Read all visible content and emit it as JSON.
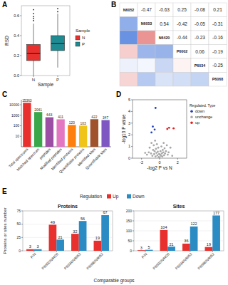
{
  "chart_data": [
    {
      "panel_label": "A",
      "type": "box",
      "x_label": "Sample",
      "y_label": "RSD",
      "categories": [
        "N",
        "P"
      ],
      "colors": [
        "#e8312e",
        "#1e8b93"
      ],
      "legend_title": "Sample",
      "legend": "right",
      "ylim": [
        0,
        0.7
      ],
      "yticks": [
        {
          "value": 0,
          "label": "0.0"
        },
        {
          "value": 0.2,
          "label": "0.2"
        },
        {
          "value": 0.4,
          "label": "0.4"
        },
        {
          "value": 0.6,
          "label": "0.6"
        }
      ],
      "boxes": [
        {
          "min": 0.0,
          "q1": 0.15,
          "median": 0.22,
          "q3": 0.31,
          "max": 0.52,
          "outliers": [
            0.55,
            0.57,
            0.59,
            0.62,
            0.66
          ]
        },
        {
          "min": 0.08,
          "q1": 0.25,
          "median": 0.32,
          "q3": 0.4,
          "max": 0.62,
          "outliers": [
            0.64,
            0.67
          ]
        }
      ]
    },
    {
      "panel_label": "B",
      "type": "heatmap",
      "labels": [
        "N6052",
        "N6053",
        "N6420",
        "P6002",
        "P6034",
        "P6068"
      ],
      "matrix": [
        [
          null,
          -0.47,
          -0.63,
          0.25,
          -0.08,
          0.21
        ],
        [
          -0.47,
          null,
          0.54,
          -0.42,
          -0.05,
          -0.31
        ],
        [
          -0.63,
          0.54,
          null,
          -0.44,
          -0.23,
          -0.16
        ],
        [
          0.25,
          -0.42,
          -0.44,
          null,
          0.06,
          -0.19
        ],
        [
          -0.08,
          -0.05,
          -0.23,
          0.06,
          null,
          -0.25
        ],
        [
          0.21,
          -0.31,
          -0.16,
          -0.19,
          -0.25,
          null
        ]
      ]
    },
    {
      "panel_label": "C",
      "type": "bar",
      "log": "y",
      "categories": [
        "Total spectrums",
        "Matched spectrum",
        "peptides",
        "Modified peptides",
        "Identified proteins",
        "Quantifiable proteins",
        "Identified sites",
        "Quantifiable sites"
      ],
      "values": [
        15363,
        2041,
        643,
        411,
        120,
        103,
        422,
        347
      ],
      "colors": [
        "#e8312e",
        "#3aa84a",
        "#9b4ea3",
        "#e377c2",
        "#ff7f0e",
        "#f0c419",
        "#a0522d",
        "#7e57c2"
      ],
      "ylim": [
        1,
        30000
      ],
      "yticks": [
        10,
        100,
        1000,
        10000
      ],
      "data_labels": true
    },
    {
      "panel_label": "D",
      "type": "scatter",
      "x_label": "-log2 P vs N",
      "y_label": "-log10 P value",
      "legend_title": "Regulated. Type",
      "legend": "right",
      "xlim": [
        -3,
        3
      ],
      "xticks": [
        -2,
        0,
        2
      ],
      "ylim": [
        0,
        5
      ],
      "yticks": [
        0,
        1,
        2,
        3,
        4,
        5
      ],
      "series": [
        {
          "name": "down",
          "color": "#1f3fbf",
          "x": [
            -0.45,
            -0.75,
            -0.55,
            -0.9
          ],
          "values": [
            4.3,
            2.7,
            2.45,
            2.2
          ]
        },
        {
          "name": "unchange",
          "color": "#a8a8a8",
          "x": [
            -1.4,
            -1.2,
            -1.1,
            -0.95,
            -0.9,
            -0.8,
            -0.72,
            -0.65,
            -0.6,
            -0.55,
            -0.5,
            -0.45,
            -0.4,
            -0.35,
            -0.3,
            -0.25,
            -0.2,
            -0.15,
            -0.1,
            -0.05,
            0,
            0.05,
            0.1,
            0.15,
            0.2,
            0.25,
            0.3,
            0.35,
            0.4,
            0.45,
            0.5,
            0.55,
            0.6,
            0.7,
            0.8,
            0.9,
            1.0,
            1.2,
            1.4,
            -1.6
          ],
          "values": [
            0.3,
            0.5,
            0.9,
            0.4,
            1.3,
            0.2,
            0.7,
            1.1,
            0.35,
            0.6,
            1.5,
            0.15,
            0.8,
            0.45,
            1.2,
            0.25,
            0.55,
            0.9,
            0.1,
            0.35,
            0.05,
            0.3,
            0.6,
            0.2,
            1.0,
            0.4,
            0.15,
            0.7,
            0.5,
            1.3,
            0.25,
            0.85,
            0.4,
            0.6,
            1.1,
            0.3,
            0.5,
            0.9,
            0.2,
            0.45
          ]
        },
        {
          "name": "up",
          "color": "#e02020",
          "x": [
            0.85,
            1.05,
            1.55
          ],
          "values": [
            2.5,
            2.6,
            2.55
          ]
        }
      ]
    },
    {
      "panel_label": "E",
      "type": "bar",
      "title": "Proteins",
      "x_label": "Comparable groups",
      "y_label": "Proteins or sites number",
      "legend_title": "Regulation",
      "categories": [
        "P/N",
        "P6002/N6420",
        "P6034/N6053",
        "P6068/N6052"
      ],
      "series": [
        {
          "name": "Up",
          "color": "#e8312e",
          "values": [
            3,
            49,
            32,
            19
          ]
        },
        {
          "name": "Down",
          "color": "#2b8cc4",
          "values": [
            3,
            21,
            56,
            67
          ]
        }
      ],
      "ylim": [
        0,
        75
      ],
      "yticks": [
        0,
        25,
        50,
        75
      ],
      "data_labels": true
    },
    {
      "type": "bar",
      "title": "Sites",
      "categories": [
        "P/N",
        "P6002/N6420",
        "P6034/N6053",
        "P6068/N6052"
      ],
      "series": [
        {
          "color": "#e8312e",
          "values": [
            3,
            104,
            36,
            19
          ]
        },
        {
          "color": "#2b8cc4",
          "values": [
            5,
            21,
            122,
            177
          ]
        }
      ],
      "ylim": [
        0,
        200
      ],
      "yticks": [
        0,
        50,
        100,
        150,
        200
      ],
      "data_labels": true
    }
  ]
}
